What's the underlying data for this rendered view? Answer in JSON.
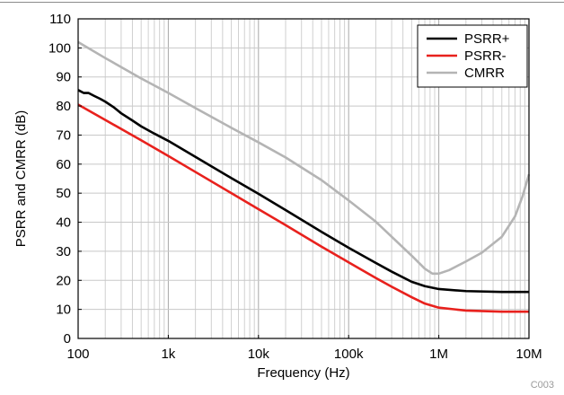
{
  "chart_data": {
    "type": "line",
    "xlabel": "Frequency (Hz)",
    "ylabel": "PSRR and CMRR (dB)",
    "xscale": "log",
    "xlim": [
      100,
      10000000
    ],
    "ylim": [
      0,
      110
    ],
    "x_ticks": [
      {
        "value": 100,
        "label": "100"
      },
      {
        "value": 1000,
        "label": "1k"
      },
      {
        "value": 10000,
        "label": "10k"
      },
      {
        "value": 100000,
        "label": "100k"
      },
      {
        "value": 1000000,
        "label": "1M"
      },
      {
        "value": 10000000,
        "label": "10M"
      }
    ],
    "y_ticks": [
      0,
      10,
      20,
      30,
      40,
      50,
      60,
      70,
      80,
      90,
      100,
      110
    ],
    "grid": true,
    "legend_position": "top-right",
    "code_label": "C003",
    "series": [
      {
        "name": "PSRR+",
        "color": "#000000",
        "points": [
          [
            100,
            85.5
          ],
          [
            115,
            84.5
          ],
          [
            130,
            84.5
          ],
          [
            150,
            83.5
          ],
          [
            175,
            82.5
          ],
          [
            200,
            81.5
          ],
          [
            250,
            79.5
          ],
          [
            300,
            77.5
          ],
          [
            400,
            75.0
          ],
          [
            500,
            73.0
          ],
          [
            700,
            70.5
          ],
          [
            1000,
            68.0
          ],
          [
            2000,
            62.5
          ],
          [
            5000,
            55.2
          ],
          [
            10000,
            49.8
          ],
          [
            20000,
            44.2
          ],
          [
            50000,
            36.7
          ],
          [
            100000,
            31.2
          ],
          [
            200000,
            26.0
          ],
          [
            300000,
            23.0
          ],
          [
            500000,
            19.5
          ],
          [
            700000,
            18.0
          ],
          [
            1000000,
            17.0
          ],
          [
            2000000,
            16.3
          ],
          [
            5000000,
            16.0
          ],
          [
            10000000,
            16.0
          ]
        ]
      },
      {
        "name": "PSRR-",
        "color": "#e8211d",
        "points": [
          [
            100,
            80.5
          ],
          [
            200,
            75.2
          ],
          [
            500,
            68.2
          ],
          [
            1000,
            62.8
          ],
          [
            2000,
            57.3
          ],
          [
            5000,
            50.0
          ],
          [
            10000,
            44.5
          ],
          [
            20000,
            39.0
          ],
          [
            50000,
            31.6
          ],
          [
            100000,
            26.2
          ],
          [
            200000,
            20.8
          ],
          [
            300000,
            17.8
          ],
          [
            500000,
            14.2
          ],
          [
            700000,
            12.0
          ],
          [
            1000000,
            10.6
          ],
          [
            2000000,
            9.6
          ],
          [
            5000000,
            9.2
          ],
          [
            10000000,
            9.2
          ]
        ]
      },
      {
        "name": "CMRR",
        "color": "#b4b4b4",
        "points": [
          [
            100,
            102
          ],
          [
            200,
            96.5
          ],
          [
            500,
            89.5
          ],
          [
            1000,
            84.5
          ],
          [
            2000,
            79.3
          ],
          [
            5000,
            72.5
          ],
          [
            10000,
            67.5
          ],
          [
            20000,
            62.3
          ],
          [
            50000,
            54.5
          ],
          [
            100000,
            47.5
          ],
          [
            200000,
            40.2
          ],
          [
            300000,
            35.0
          ],
          [
            500000,
            28.5
          ],
          [
            700000,
            24.0
          ],
          [
            850000,
            22.3
          ],
          [
            1000000,
            22.3
          ],
          [
            1300000,
            23.5
          ],
          [
            2000000,
            26.5
          ],
          [
            3000000,
            29.5
          ],
          [
            5000000,
            35.0
          ],
          [
            7000000,
            42.0
          ],
          [
            8500000,
            49.0
          ],
          [
            10000000,
            56.5
          ]
        ]
      }
    ]
  }
}
